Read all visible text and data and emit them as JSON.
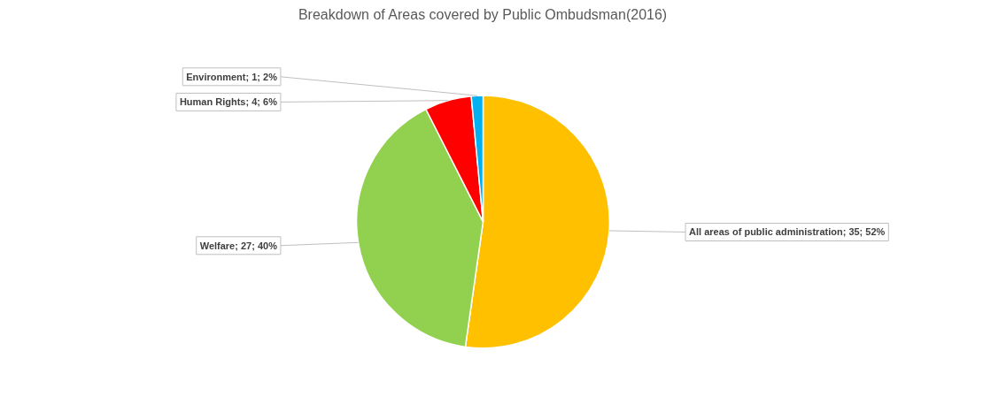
{
  "chart_data": {
    "type": "pie",
    "title": "Breakdown of Areas covered by Public Ombudsman(2016)",
    "categories": [
      "All areas of public administration",
      "Welfare",
      "Human Rights",
      "Environment"
    ],
    "values": [
      35,
      27,
      4,
      1
    ],
    "colors": [
      "#ffc000",
      "#92d050",
      "#ff0000",
      "#00b0f0"
    ],
    "value_labels": [
      "35; 52%",
      "27; 40%",
      "4; 6%",
      "1; 2%"
    ]
  }
}
